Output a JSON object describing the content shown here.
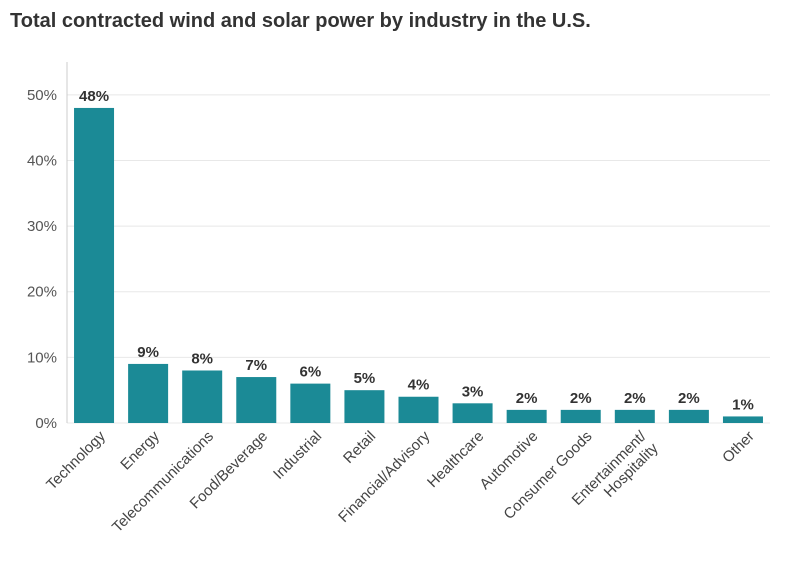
{
  "chart_data": {
    "type": "bar",
    "title": "Total contracted wind and solar power by industry in the U.S.",
    "xlabel": "",
    "ylabel": "",
    "ylim": [
      0,
      55
    ],
    "yticks": [
      0,
      10,
      20,
      30,
      40,
      50
    ],
    "ytick_labels": [
      "0%",
      "10%",
      "20%",
      "30%",
      "40%",
      "50%"
    ],
    "categories": [
      "Technology",
      "Energy",
      "Telecommunications",
      "Food/Beverage",
      "Industrial",
      "Retail",
      "Financial/Advisory",
      "Healthcare",
      "Automotive",
      "Consumer Goods",
      "Entertainment/\nHospitality",
      "",
      "Other"
    ],
    "values": [
      48,
      9,
      8,
      7,
      6,
      5,
      4,
      3,
      2,
      2,
      2,
      2,
      1
    ],
    "value_labels": [
      "48%",
      "9%",
      "8%",
      "7%",
      "6%",
      "5%",
      "4%",
      "3%",
      "2%",
      "2%",
      "2%",
      "2%",
      "1%"
    ],
    "bar_color": "#1b8a96",
    "grid": true,
    "legend": "none"
  }
}
